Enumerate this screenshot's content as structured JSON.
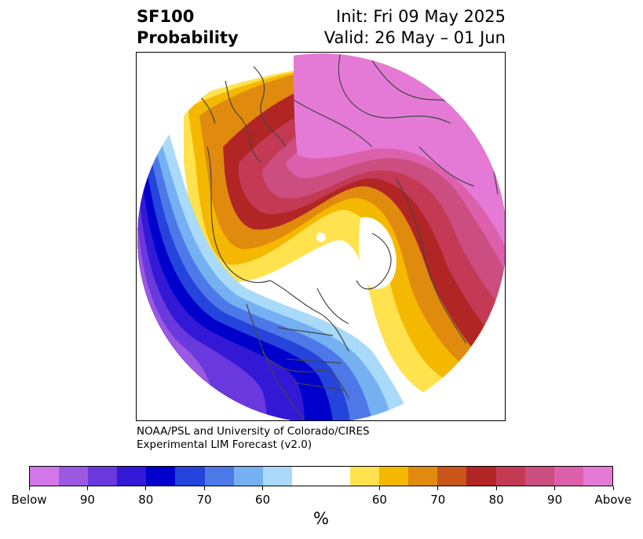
{
  "header": {
    "title_line1": "SF100",
    "title_line2": "Probability",
    "init_label": "Init: Fri 09 May 2025",
    "valid_label": "Valid: 26 May – 01 Jun"
  },
  "credit": {
    "line1": "NOAA/PSL and University of Colorado/CIRES",
    "line2": "Experimental LIM Forecast (v2.0)"
  },
  "colorbar": {
    "unit": "%",
    "colors": [
      "#d277ea",
      "#9b58e0",
      "#6a39dd",
      "#3318d6",
      "#0000cc",
      "#2544dc",
      "#4d78e8",
      "#74b0f2",
      "#a9daf9",
      "#ffffff",
      "#ffffff",
      "#ffe24d",
      "#f4b800",
      "#e08a0e",
      "#c8561a",
      "#b22525",
      "#c43a55",
      "#cc4d80",
      "#dc60ac",
      "#e57ad6"
    ],
    "ticks": [
      "Below",
      "90",
      "80",
      "70",
      "60",
      "60",
      "70",
      "80",
      "90",
      "Above"
    ]
  },
  "map_colors": {
    "magenta": "#e57ad6",
    "pink": "#dc60ac",
    "rose": "#cc4d80",
    "crimson": "#c43a55",
    "red": "#b22525",
    "orange": "#e08a0e",
    "gold": "#f4b800",
    "yellow": "#ffe24d",
    "lightblue": "#a9daf9",
    "skyblue": "#74b0f2",
    "blue": "#4d78e8",
    "royal": "#2544dc",
    "navy": "#0000cc",
    "indigo": "#3318d6",
    "violet": "#6a39dd",
    "purple": "#9b58e0",
    "border": "#444444"
  }
}
